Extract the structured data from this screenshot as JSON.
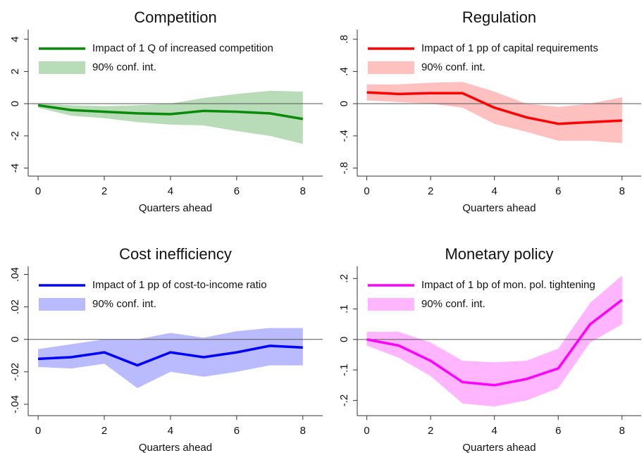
{
  "chart_data": [
    {
      "type": "line",
      "title": "Competition",
      "xlabel": "Quarters ahead",
      "x": [
        0,
        1,
        2,
        3,
        4,
        5,
        6,
        7,
        8
      ],
      "xlim": [
        -0.3,
        8.6
      ],
      "xticks": [
        0,
        2,
        4,
        6,
        8
      ],
      "ylim": [
        -4.5,
        4.6
      ],
      "yticks": [
        4,
        2,
        0,
        -2,
        -4
      ],
      "hline": 0,
      "series": [
        {
          "name": "Impact of 1 Q of increased competition",
          "color": "#0a8a0a",
          "values": [
            -0.1,
            -0.4,
            -0.5,
            -0.6,
            -0.65,
            -0.45,
            -0.5,
            -0.6,
            -0.95
          ]
        }
      ],
      "band": {
        "name": "90% conf. int.",
        "color": "#b7dcb7",
        "lower": [
          -0.25,
          -0.75,
          -0.9,
          -1.15,
          -1.3,
          -1.35,
          -1.7,
          -2.0,
          -2.5
        ],
        "upper": [
          0,
          -0.1,
          -0.15,
          -0.1,
          0,
          0.35,
          0.6,
          0.8,
          0.75
        ]
      }
    },
    {
      "type": "line",
      "title": "Regulation",
      "xlabel": "Quarters ahead",
      "x": [
        0,
        1,
        2,
        3,
        4,
        5,
        6,
        7,
        8
      ],
      "xlim": [
        -0.3,
        8.6
      ],
      "xticks": [
        0,
        2,
        4,
        6,
        8
      ],
      "ylim": [
        -0.9,
        0.92
      ],
      "yticks": [
        {
          "value": 0.8,
          "label": ".8"
        },
        {
          "value": 0.4,
          "label": ".4"
        },
        0,
        {
          "value": -0.4,
          "label": "-.4"
        },
        {
          "value": -0.8,
          "label": "-.8"
        }
      ],
      "hline": 0,
      "series": [
        {
          "name": "Impact of 1 pp of capital requirements",
          "color": "#ff0000",
          "values": [
            0.14,
            0.12,
            0.13,
            0.13,
            -0.05,
            -0.17,
            -0.25,
            -0.23,
            -0.21
          ]
        }
      ],
      "band": {
        "name": "90% conf. int.",
        "color": "#ffc0c0",
        "lower": [
          0.04,
          0.02,
          0.0,
          -0.05,
          -0.25,
          -0.35,
          -0.46,
          -0.46,
          -0.49
        ],
        "upper": [
          0.24,
          0.24,
          0.26,
          0.27,
          0.15,
          0.0,
          -0.04,
          0.0,
          0.08
        ]
      }
    },
    {
      "type": "line",
      "title": "Cost inefficiency",
      "xlabel": "Quarters ahead",
      "x": [
        0,
        1,
        2,
        3,
        4,
        5,
        6,
        7,
        8
      ],
      "xlim": [
        -0.3,
        8.6
      ],
      "xticks": [
        0,
        2,
        4,
        6,
        8
      ],
      "ylim": [
        -0.047,
        0.045
      ],
      "yticks": [
        {
          "value": 0.04,
          "label": ".04"
        },
        {
          "value": 0.02,
          "label": ".02"
        },
        0,
        {
          "value": -0.02,
          "label": "-.02"
        },
        {
          "value": -0.04,
          "label": "-.04"
        }
      ],
      "hline": 0,
      "series": [
        {
          "name": "Impact of 1 pp of cost-to-income ratio",
          "color": "#0000ff",
          "values": [
            -0.012,
            -0.011,
            -0.008,
            -0.016,
            -0.008,
            -0.011,
            -0.008,
            -0.004,
            -0.005
          ]
        }
      ],
      "band": {
        "name": "90% conf. int.",
        "color": "#babaff",
        "lower": [
          -0.017,
          -0.018,
          -0.015,
          -0.03,
          -0.02,
          -0.023,
          -0.02,
          -0.016,
          -0.016
        ],
        "upper": [
          -0.006,
          -0.003,
          0.0,
          0.0,
          0.004,
          0.001,
          0.005,
          0.007,
          0.007
        ]
      }
    },
    {
      "type": "line",
      "title": "Monetary policy",
      "xlabel": "Quarters ahead",
      "x": [
        0,
        1,
        2,
        3,
        4,
        5,
        6,
        7,
        8
      ],
      "xlim": [
        -0.3,
        8.6
      ],
      "xticks": [
        0,
        2,
        4,
        6,
        8
      ],
      "ylim": [
        -0.25,
        0.24
      ],
      "yticks": [
        {
          "value": 0.2,
          "label": ".2"
        },
        {
          "value": 0.1,
          "label": ".1"
        },
        0,
        {
          "value": -0.1,
          "label": "-.1"
        },
        {
          "value": -0.2,
          "label": "-.2"
        }
      ],
      "hline": 0,
      "series": [
        {
          "name": "Impact of 1 bp of mon. pol. tightening",
          "color": "#ff00ff",
          "values": [
            0,
            -0.02,
            -0.07,
            -0.14,
            -0.15,
            -0.13,
            -0.095,
            0.05,
            0.13
          ]
        }
      ],
      "band": {
        "name": "90% conf. int.",
        "color": "#ffb6ff",
        "lower": [
          -0.02,
          -0.06,
          -0.12,
          -0.21,
          -0.22,
          -0.2,
          -0.16,
          -0.01,
          0.05
        ],
        "upper": [
          0.025,
          0.025,
          -0.01,
          -0.07,
          -0.075,
          -0.07,
          -0.03,
          0.12,
          0.21
        ]
      }
    }
  ]
}
